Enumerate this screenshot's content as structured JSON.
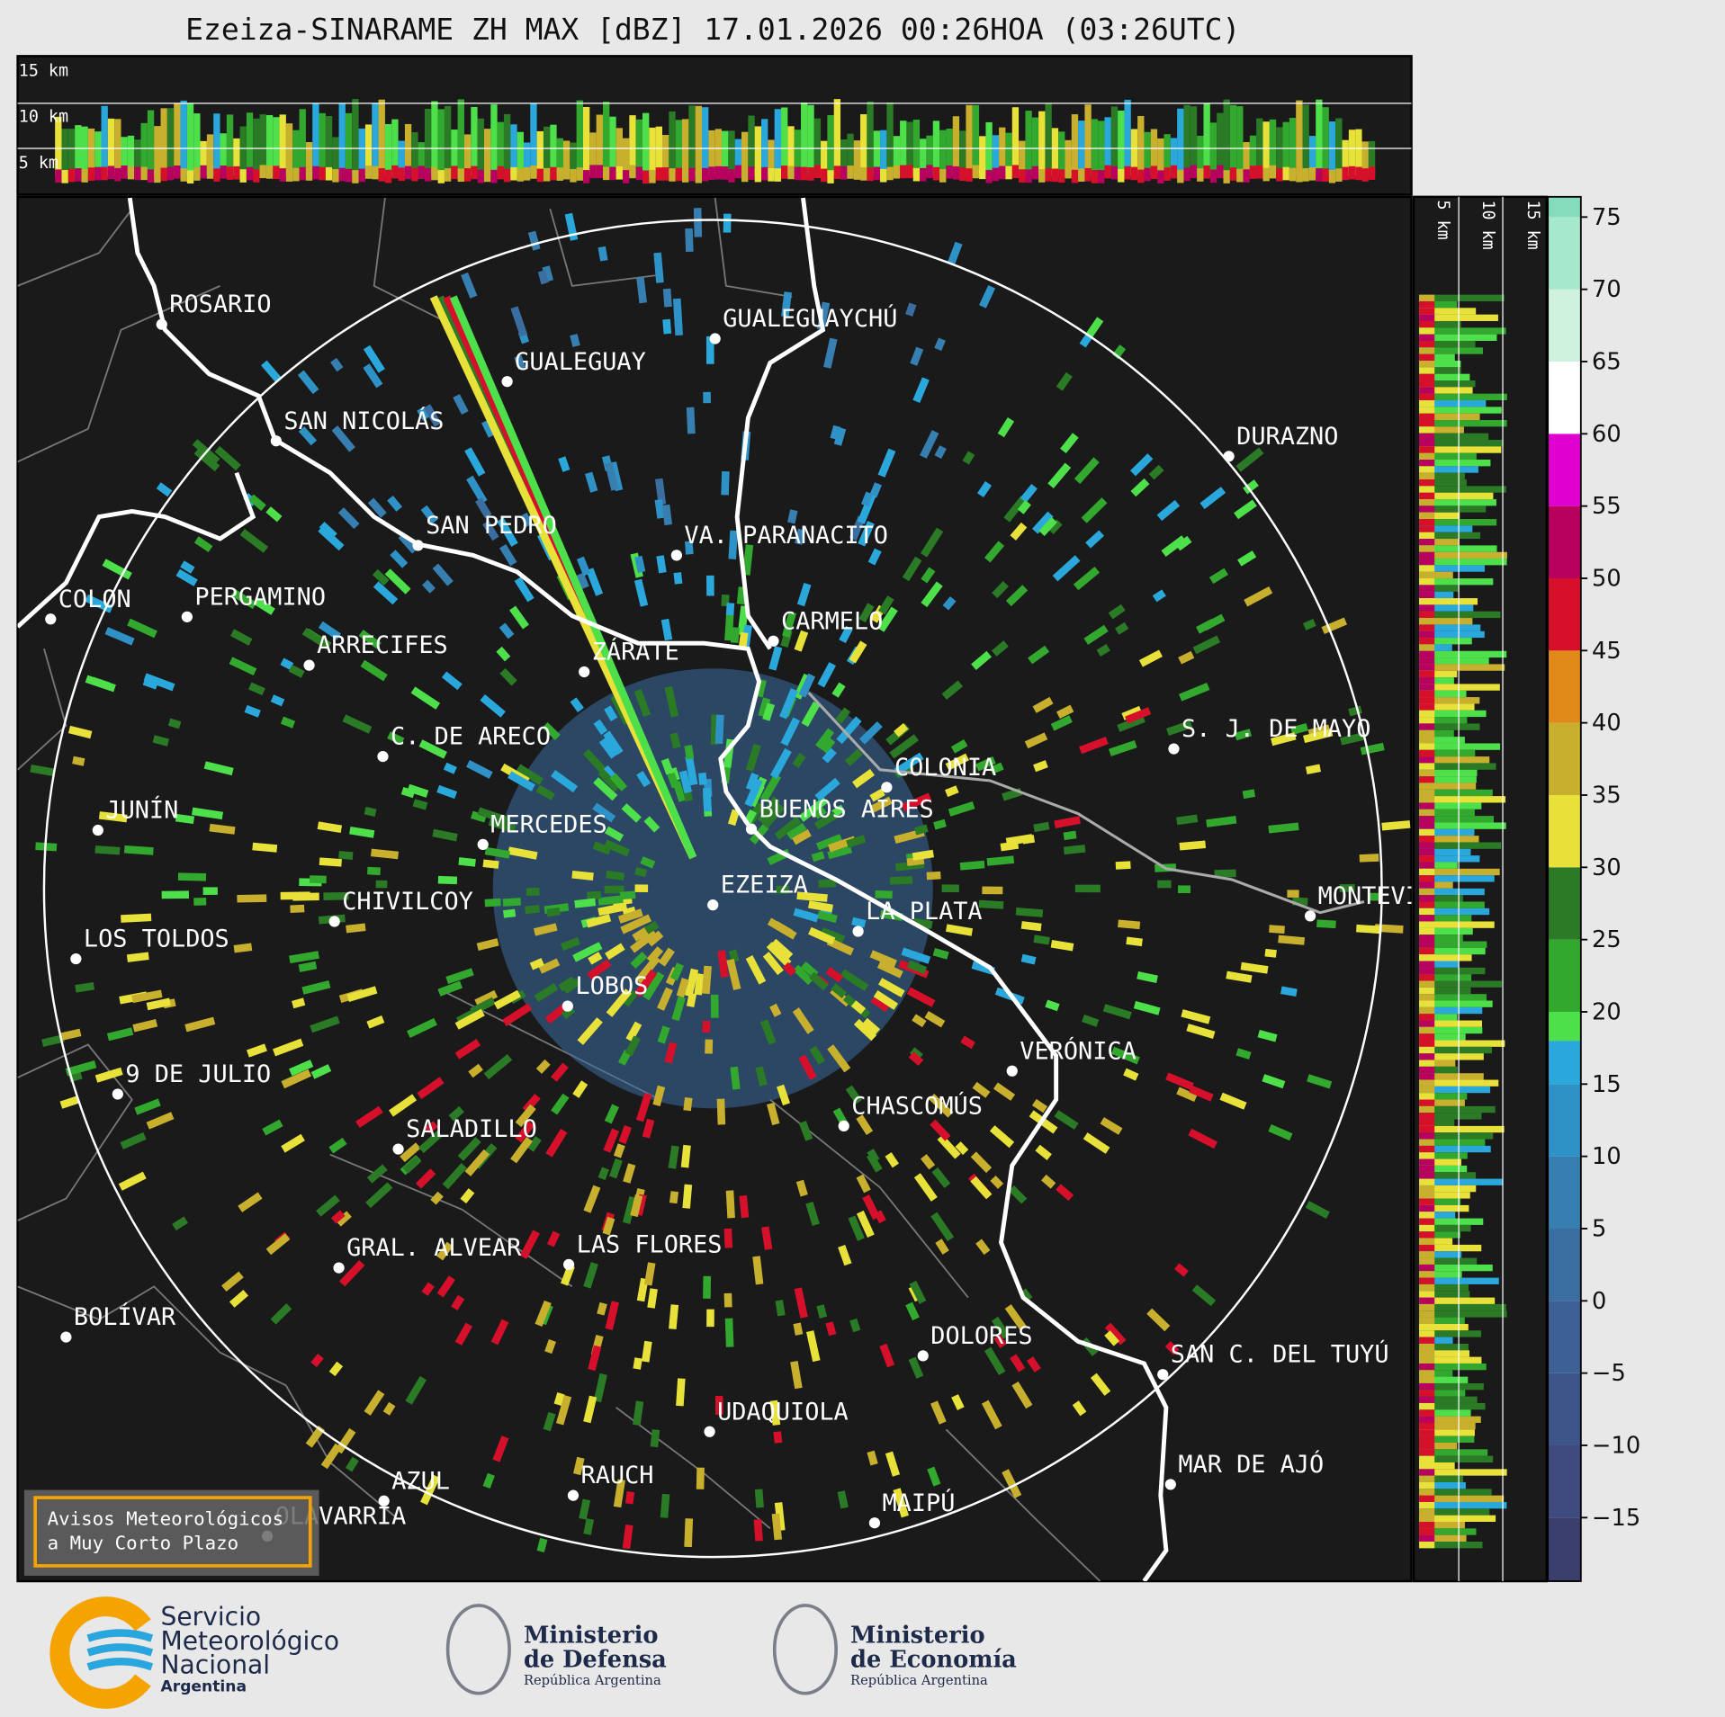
{
  "title": "Ezeiza-SINARAME ZH MAX [dBZ] 17.01.2026 00:26HOA (03:26UTC)",
  "top_panel": {
    "height_labels": [
      "15 km",
      "10 km",
      "5 km"
    ]
  },
  "side_panel": {
    "height_labels": [
      "5 km",
      "10 km",
      "15 km"
    ]
  },
  "map": {
    "cities": [
      "ROSARIO",
      "GUALEGUAYCHÚ",
      "GUALEGUAY",
      "SAN NICOLÁS",
      "DURAZNO",
      "SAN PEDRO",
      "VA. PARANACITO",
      "COLON",
      "PERGAMINO",
      "CARMELO",
      "ARRECIFES",
      "ZÁRATE",
      "C. DE ARECO",
      "S. J. DE MAYO",
      "COLONIA",
      "JUNÍN",
      "BUENOS AIRES",
      "MERCEDES",
      "EZEIZA",
      "MONTEVIDEO",
      "CHIVILCOY",
      "LA PLATA",
      "LOS TOLDOS",
      "LOBOS",
      "VERÓNICA",
      "9 DE JULIO",
      "CHASCOMÚS",
      "SALADILLO",
      "GRAL. ALVEAR",
      "LAS FLORES",
      "BOLÍVAR",
      "SAN C. DEL TUYÚ",
      "DOLORES",
      "UDAQUIOLA",
      "MAR DE AJÓ",
      "AZUL",
      "RAUCH",
      "OLAVARRÍA",
      "MAIPÚ"
    ]
  },
  "colorbar": {
    "lim": [
      -19.4,
      76.4
    ],
    "ticks": [
      75,
      70,
      65,
      60,
      55,
      50,
      45,
      40,
      35,
      30,
      25,
      20,
      15,
      10,
      5,
      0,
      {
        "value": -5,
        "label": "−5"
      },
      {
        "value": -10,
        "label": "−10"
      },
      {
        "value": -15,
        "label": "−15"
      }
    ],
    "bounds": [
      -15,
      -10,
      -5,
      0,
      5,
      10,
      15,
      18,
      20,
      25,
      30,
      35,
      40,
      45,
      50,
      55,
      60,
      65,
      70,
      75
    ],
    "colors": [
      "#3b3f6e",
      "#3f4a7e",
      "#3e5589",
      "#3d6194",
      "#3b6ea0",
      "#377fb0",
      "#2f92c6",
      "#2aa8dc",
      "#4ee04a",
      "#33a82e",
      "#2a7a26",
      "#e8e13a",
      "#c8b02e",
      "#e08a1a",
      "#d6102a",
      "#b8005e",
      "#e000d0",
      "#ffffff",
      "#cff2df",
      "#a6e8cc",
      "#84dcbd"
    ]
  },
  "notice": [
    "Avisos Meteorológicos",
    "a Muy Corto Plazo"
  ],
  "footer": {
    "smn": [
      "Servicio",
      "Meteorológico",
      "Nacional",
      "Argentina"
    ],
    "defensa": [
      "Ministerio",
      "de Defensa",
      "República Argentina"
    ],
    "economia": [
      "Ministerio",
      "de Economía",
      "República Argentina"
    ]
  }
}
